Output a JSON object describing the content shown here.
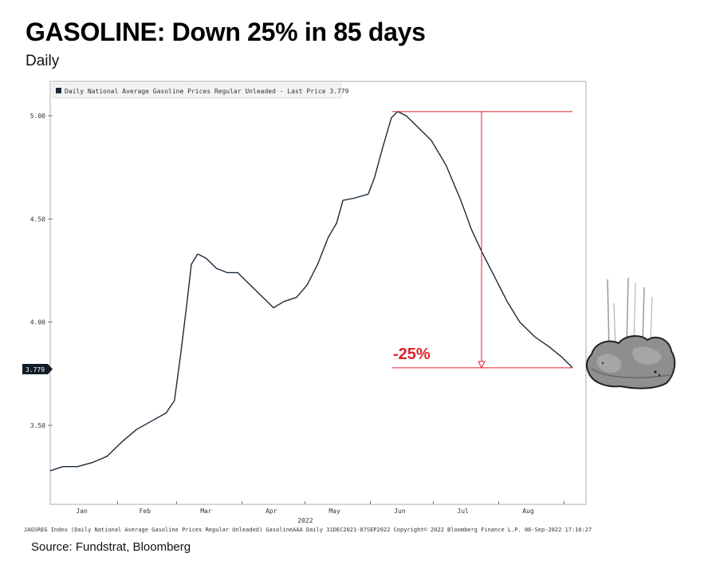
{
  "header": {
    "title": "GASOLINE: Down 25% in 85 days",
    "subtitle": "Daily"
  },
  "source": "Source: Fundstrat, Bloomberg",
  "footer_text": "JAGSREG Index (Daily National Average Gasoline Prices Regular Unleaded) GasolineAAA  Daily 31DEC2021-07SEP2022  Copyright© 2022 Bloomberg Finance L.P.  06-Sep-2022 17:16:27",
  "annotation": {
    "label": "-25%",
    "color": "#e0212a"
  },
  "last_price_badge": "3.779",
  "icon": {
    "name": "falling-rock-icon"
  },
  "chart_data": {
    "type": "line",
    "title": "",
    "legend": "Daily National Average Gasoline Prices Regular Unleaded - Last Price 3.779",
    "legend_position": "top-left",
    "xlabel": "2022",
    "ylabel": "",
    "x_start": "2021-12-31",
    "x_end": "2022-09-07",
    "x_ticks": [
      {
        "date": "2022-01-15",
        "label": "Jan"
      },
      {
        "date": "2022-02-14",
        "label": "Feb"
      },
      {
        "date": "2022-03-15",
        "label": "Mar"
      },
      {
        "date": "2022-04-15",
        "label": "Apr"
      },
      {
        "date": "2022-05-15",
        "label": "May"
      },
      {
        "date": "2022-06-15",
        "label": "Jun"
      },
      {
        "date": "2022-07-15",
        "label": "Jul"
      },
      {
        "date": "2022-08-15",
        "label": "Aug"
      }
    ],
    "ylim": [
      3.2,
      5.2
    ],
    "y_ticks": [
      3.5,
      4.0,
      4.5,
      5.0
    ],
    "y_tick_labels": [
      "3.50",
      "4.00",
      "4.50",
      "5.00"
    ],
    "grid": false,
    "line_color": "#1c2a3a",
    "series": [
      {
        "name": "Daily National Average Gasoline Prices Regular Unleaded",
        "points": [
          [
            "2021-12-31",
            3.28
          ],
          [
            "2022-01-06",
            3.3
          ],
          [
            "2022-01-13",
            3.3
          ],
          [
            "2022-01-20",
            3.32
          ],
          [
            "2022-01-27",
            3.35
          ],
          [
            "2022-02-03",
            3.42
          ],
          [
            "2022-02-10",
            3.48
          ],
          [
            "2022-02-17",
            3.52
          ],
          [
            "2022-02-24",
            3.56
          ],
          [
            "2022-02-28",
            3.62
          ],
          [
            "2022-03-03",
            3.85
          ],
          [
            "2022-03-06",
            4.1
          ],
          [
            "2022-03-08",
            4.28
          ],
          [
            "2022-03-11",
            4.33
          ],
          [
            "2022-03-15",
            4.31
          ],
          [
            "2022-03-20",
            4.26
          ],
          [
            "2022-03-25",
            4.24
          ],
          [
            "2022-03-30",
            4.24
          ],
          [
            "2022-04-05",
            4.18
          ],
          [
            "2022-04-12",
            4.11
          ],
          [
            "2022-04-16",
            4.07
          ],
          [
            "2022-04-21",
            4.1
          ],
          [
            "2022-04-27",
            4.12
          ],
          [
            "2022-05-02",
            4.18
          ],
          [
            "2022-05-07",
            4.28
          ],
          [
            "2022-05-12",
            4.41
          ],
          [
            "2022-05-16",
            4.48
          ],
          [
            "2022-05-19",
            4.59
          ],
          [
            "2022-05-24",
            4.6
          ],
          [
            "2022-05-31",
            4.62
          ],
          [
            "2022-06-03",
            4.7
          ],
          [
            "2022-06-07",
            4.85
          ],
          [
            "2022-06-11",
            4.99
          ],
          [
            "2022-06-14",
            5.02
          ],
          [
            "2022-06-18",
            5.0
          ],
          [
            "2022-06-23",
            4.95
          ],
          [
            "2022-06-30",
            4.88
          ],
          [
            "2022-07-07",
            4.76
          ],
          [
            "2022-07-14",
            4.59
          ],
          [
            "2022-07-19",
            4.45
          ],
          [
            "2022-07-24",
            4.34
          ],
          [
            "2022-07-30",
            4.22
          ],
          [
            "2022-08-05",
            4.1
          ],
          [
            "2022-08-11",
            4.0
          ],
          [
            "2022-08-18",
            3.93
          ],
          [
            "2022-08-25",
            3.88
          ],
          [
            "2022-08-31",
            3.83
          ],
          [
            "2022-09-05",
            3.779
          ]
        ]
      }
    ],
    "peak_value": 5.02,
    "last_value": 3.779
  }
}
